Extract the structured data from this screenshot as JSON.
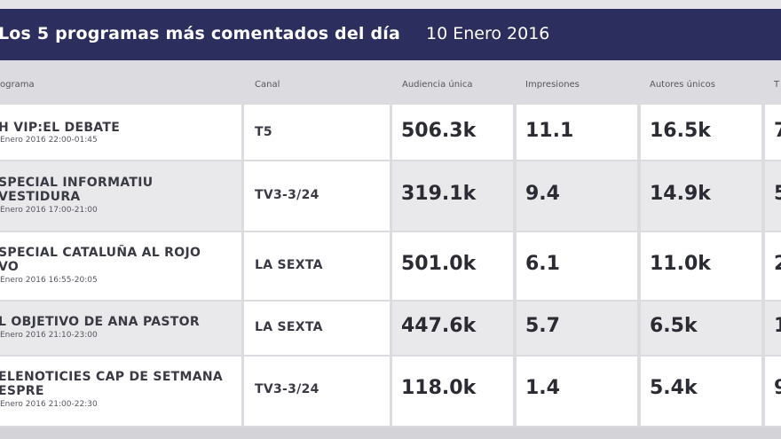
{
  "header": {
    "title": "Los 5 programas más comentados del día",
    "date": "10 Enero 2016"
  },
  "columns": {
    "programa": "ograma",
    "canal": "Canal",
    "audiencia": "Audiencia única",
    "impresiones": "Impresiones",
    "autores": "Autores únicos",
    "last": "T"
  },
  "rows": [
    {
      "name1": "H VIP:EL DEBATE",
      "name2": "",
      "time": "Enero 2016 22:00-01:45",
      "canal": "T5",
      "audiencia": "506.3k",
      "impresiones": "11.1",
      "autores": "16.5k",
      "last": "7"
    },
    {
      "name1": "SPECIAL INFORMATIU",
      "name2": "VESTIDURA",
      "time": "Enero 2016 17:00-21:00",
      "canal": "TV3-3/24",
      "audiencia": "319.1k",
      "impresiones": "9.4",
      "autores": "14.9k",
      "last": "5"
    },
    {
      "name1": "SPECIAL CATALUÑA AL ROJO",
      "name2": "VO",
      "time": "Enero 2016 16:55-20:05",
      "canal": "LA SEXTA",
      "audiencia": "501.0k",
      "impresiones": "6.1",
      "autores": "11.0k",
      "last": "2"
    },
    {
      "name1": "L OBJETIVO DE ANA PASTOR",
      "name2": "",
      "time": "Enero 2016 21:10-23:00",
      "canal": "LA SEXTA",
      "audiencia": "447.6k",
      "impresiones": "5.7",
      "autores": "6.5k",
      "last": "1"
    },
    {
      "name1": "ELENOTICIES CAP DE SETMANA",
      "name2": "ESPRE",
      "time": "Enero 2016 21:00-22:30",
      "canal": "TV3-3/24",
      "audiencia": "118.0k",
      "impresiones": "1.4",
      "autores": "5.4k",
      "last": "9"
    }
  ]
}
